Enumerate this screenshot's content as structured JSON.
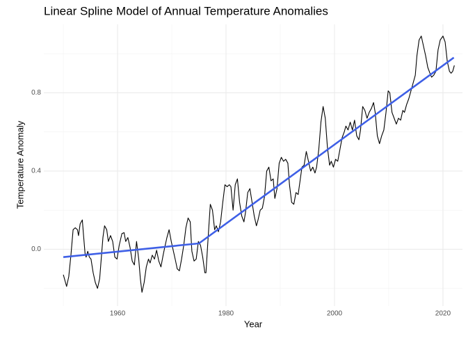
{
  "chart_data": {
    "type": "line",
    "title": "Linear Spline Model of Annual Temperature Anomalies",
    "xlabel": "Year",
    "ylabel": "Temperature Anomaly",
    "xlim": [
      1946.4,
      2023.6
    ],
    "ylim": [
      -0.29,
      1.15
    ],
    "xticks": [
      1960,
      1980,
      2000,
      2020
    ],
    "yticks": [
      {
        "value": 0,
        "label": "0.0"
      },
      0.4,
      0.8
    ],
    "xminor": [
      1950,
      1970,
      1990,
      2010
    ],
    "yminor": [
      -0.2,
      0.2,
      0.6,
      1.0
    ],
    "grid": true,
    "series": [
      {
        "color": "#000000",
        "width": 1.1,
        "x": [
          1950.0,
          1950.4,
          1950.6,
          1951.0,
          1951.4,
          1951.8,
          1952.2,
          1952.6,
          1952.8,
          1953.1,
          1953.5,
          1953.7,
          1954.0,
          1954.2,
          1954.5,
          1954.8,
          1955.1,
          1955.5,
          1955.9,
          1956.3,
          1956.7,
          1956.9,
          1957.3,
          1957.6,
          1958.0,
          1958.3,
          1958.7,
          1959.1,
          1959.5,
          1959.9,
          1960.3,
          1960.8,
          1961.2,
          1961.5,
          1961.9,
          1962.3,
          1962.7,
          1963.1,
          1963.5,
          1963.9,
          1964.2,
          1964.5,
          1964.9,
          1965.3,
          1965.7,
          1966.0,
          1966.4,
          1966.8,
          1967.2,
          1967.6,
          1968.0,
          1968.4,
          1968.7,
          1969.1,
          1969.5,
          1969.9,
          1970.3,
          1970.7,
          1971.0,
          1971.4,
          1971.8,
          1972.2,
          1972.6,
          1973.0,
          1973.4,
          1973.7,
          1974.1,
          1974.5,
          1974.9,
          1975.3,
          1975.7,
          1976.1,
          1976.3,
          1976.7,
          1977.1,
          1977.5,
          1977.9,
          1978.2,
          1978.6,
          1979.0,
          1979.4,
          1979.8,
          1980.2,
          1980.6,
          1980.9,
          1981.3,
          1981.7,
          1982.1,
          1982.5,
          1982.9,
          1983.3,
          1983.6,
          1984.0,
          1984.4,
          1984.8,
          1985.2,
          1985.6,
          1985.9,
          1986.3,
          1986.7,
          1987.1,
          1987.5,
          1987.9,
          1988.3,
          1988.7,
          1989.0,
          1989.4,
          1989.8,
          1990.2,
          1990.6,
          1991.0,
          1991.4,
          1991.7,
          1992.1,
          1992.5,
          1992.9,
          1993.3,
          1993.7,
          1994.0,
          1994.4,
          1994.8,
          1995.2,
          1995.6,
          1996.0,
          1996.4,
          1996.7,
          1997.1,
          1997.5,
          1997.9,
          1998.3,
          1998.7,
          1999.1,
          1999.4,
          1999.8,
          2000.2,
          2000.6,
          2001.0,
          2001.4,
          2001.8,
          2002.1,
          2002.5,
          2002.9,
          2003.3,
          2003.7,
          2004.1,
          2004.5,
          2004.8,
          2005.2,
          2005.6,
          2006.0,
          2006.4,
          2006.8,
          2007.2,
          2007.5,
          2007.9,
          2008.3,
          2008.7,
          2009.1,
          2009.5,
          2009.9,
          2010.2,
          2010.6,
          2011.0,
          2011.4,
          2011.8,
          2012.2,
          2012.6,
          2012.9,
          2013.3,
          2013.7,
          2014.1,
          2014.5,
          2014.9,
          2015.2,
          2015.6,
          2016.0,
          2016.4,
          2016.8,
          2017.2,
          2017.6,
          2017.9,
          2018.3,
          2018.7,
          2019.1,
          2019.5,
          2020.0,
          2020.4,
          2020.8,
          2021.2,
          2021.5,
          2021.8,
          2022.1
        ],
        "values": [
          -0.13,
          -0.17,
          -0.19,
          -0.14,
          -0.03,
          0.1,
          0.11,
          0.1,
          0.07,
          0.13,
          0.15,
          0.08,
          -0.02,
          -0.04,
          -0.01,
          -0.04,
          -0.05,
          -0.12,
          -0.17,
          -0.2,
          -0.15,
          -0.08,
          0.06,
          0.12,
          0.1,
          0.04,
          0.07,
          0.04,
          -0.04,
          -0.05,
          0.02,
          0.08,
          0.085,
          0.04,
          0.06,
          0.01,
          -0.06,
          -0.08,
          0.04,
          -0.05,
          -0.15,
          -0.22,
          -0.17,
          -0.09,
          -0.05,
          -0.07,
          -0.03,
          -0.05,
          -0.005,
          -0.06,
          -0.09,
          -0.03,
          0.01,
          0.06,
          0.1,
          0.04,
          -0.01,
          -0.06,
          -0.1,
          -0.11,
          -0.05,
          0.02,
          0.11,
          0.16,
          0.14,
          -0.01,
          -0.06,
          -0.05,
          0.04,
          0.02,
          -0.04,
          -0.12,
          -0.12,
          0.06,
          0.23,
          0.2,
          0.1,
          0.12,
          0.09,
          0.14,
          0.24,
          0.33,
          0.32,
          0.33,
          0.32,
          0.2,
          0.33,
          0.36,
          0.24,
          0.17,
          0.14,
          0.19,
          0.29,
          0.31,
          0.24,
          0.17,
          0.12,
          0.15,
          0.2,
          0.21,
          0.27,
          0.4,
          0.42,
          0.35,
          0.36,
          0.26,
          0.31,
          0.44,
          0.47,
          0.45,
          0.46,
          0.44,
          0.33,
          0.24,
          0.23,
          0.29,
          0.28,
          0.36,
          0.42,
          0.43,
          0.5,
          0.45,
          0.4,
          0.42,
          0.39,
          0.42,
          0.51,
          0.65,
          0.73,
          0.67,
          0.52,
          0.43,
          0.45,
          0.42,
          0.46,
          0.45,
          0.51,
          0.57,
          0.6,
          0.63,
          0.61,
          0.65,
          0.61,
          0.66,
          0.58,
          0.56,
          0.61,
          0.73,
          0.71,
          0.67,
          0.7,
          0.72,
          0.75,
          0.7,
          0.58,
          0.54,
          0.58,
          0.61,
          0.7,
          0.81,
          0.8,
          0.7,
          0.67,
          0.64,
          0.67,
          0.66,
          0.71,
          0.7,
          0.74,
          0.77,
          0.81,
          0.85,
          0.89,
          0.99,
          1.07,
          1.09,
          1.04,
          0.99,
          0.93,
          0.9,
          0.88,
          0.89,
          0.91,
          1.02,
          1.07,
          1.09,
          1.06,
          0.96,
          0.91,
          0.9,
          0.91,
          0.94
        ]
      },
      {
        "color": "#3e5fe6",
        "width": 2.6,
        "x": [
          1950,
          1975,
          2022
        ],
        "values": [
          -0.04,
          0.03,
          0.98
        ]
      }
    ]
  }
}
